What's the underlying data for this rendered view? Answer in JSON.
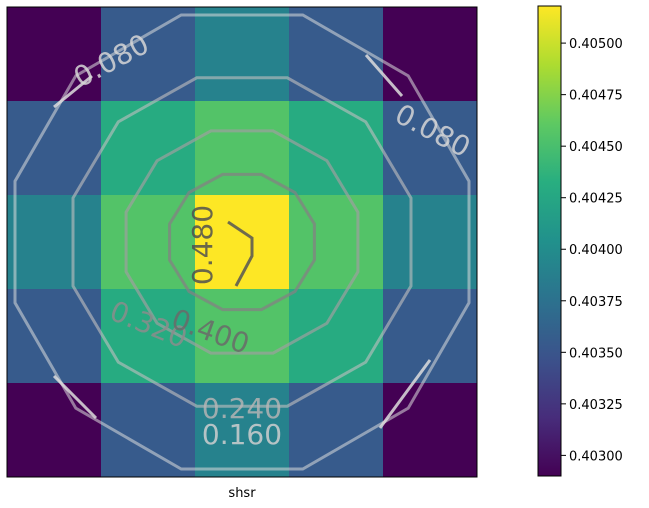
{
  "chart_data": {
    "type": "heatmap",
    "xlabel": "shsr",
    "ylabel": "",
    "grid": false,
    "cmap": "viridis",
    "colorbar": {
      "min": 0.4029,
      "max": 0.40518,
      "ticks": [
        0.403,
        0.40325,
        0.4035,
        0.40375,
        0.404,
        0.40425,
        0.4045,
        0.40475,
        0.405
      ],
      "tick_labels": [
        "0.40300",
        "0.40325",
        "0.40350",
        "0.40375",
        "0.40400",
        "0.40425",
        "0.40450",
        "0.40475",
        "0.40500"
      ]
    },
    "matrix": [
      [
        0.4029,
        0.40355,
        0.4039,
        0.40355,
        0.4029
      ],
      [
        0.40355,
        0.4043,
        0.40455,
        0.4043,
        0.40355
      ],
      [
        0.4039,
        0.40455,
        0.40518,
        0.40455,
        0.4039
      ],
      [
        0.40355,
        0.4043,
        0.40455,
        0.4043,
        0.40355
      ],
      [
        0.4029,
        0.40355,
        0.4039,
        0.40355,
        0.4029
      ]
    ],
    "contours": {
      "levels": [
        0.08,
        0.16,
        0.24,
        0.32,
        0.4,
        0.48
      ],
      "labels": [
        {
          "text": "0.080"
        },
        {
          "text": "0.080"
        },
        {
          "text": "0.160"
        },
        {
          "text": "0.240"
        },
        {
          "text": "0.320"
        },
        {
          "text": "0.400"
        },
        {
          "text": "0.480"
        }
      ]
    }
  }
}
